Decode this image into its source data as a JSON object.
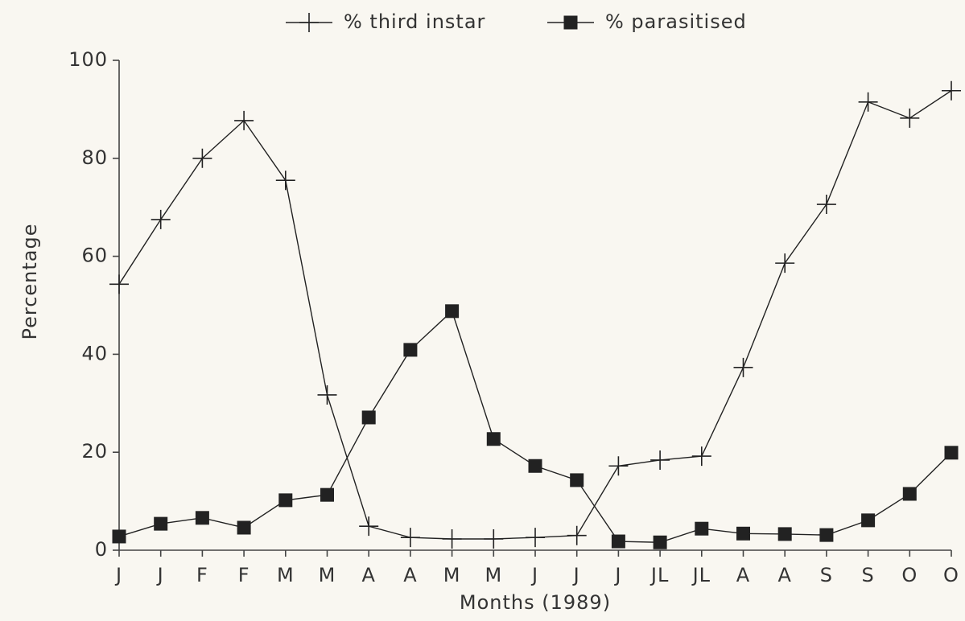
{
  "chart_data": {
    "type": "line",
    "x_label": "Months (1989)",
    "y_label": "Percentage",
    "categories": [
      "J",
      "J",
      "F",
      "F",
      "M",
      "M",
      "A",
      "A",
      "M",
      "M",
      "J",
      "J",
      "J",
      "JL",
      "JL",
      "A",
      "A",
      "S",
      "S",
      "O",
      "O"
    ],
    "series": [
      {
        "name": "% third instar",
        "color": "#222222",
        "marker": "plus",
        "values": [
          54.3,
          67.5,
          80,
          87.7,
          75.5,
          31.7,
          4.9,
          2.6,
          2.3,
          2.3,
          2.6,
          3,
          17.2,
          18.4,
          19.2,
          37.3,
          58.6,
          70.6,
          91.5,
          88.2,
          93.8
        ]
      },
      {
        "name": "% parasitised",
        "color": "#222222",
        "marker": "square",
        "values": [
          2.8,
          5.4,
          6.6,
          4.6,
          10.2,
          11.3,
          27.1,
          40.9,
          48.8,
          22.7,
          17.2,
          14.3,
          1.8,
          1.6,
          4.4,
          3.4,
          3.3,
          3.1,
          6.1,
          11.5,
          19.9
        ]
      }
    ],
    "ylim": [
      0,
      100
    ],
    "yticks": [
      0,
      20,
      40,
      60,
      80,
      100
    ],
    "grid": false,
    "legend": "top"
  }
}
